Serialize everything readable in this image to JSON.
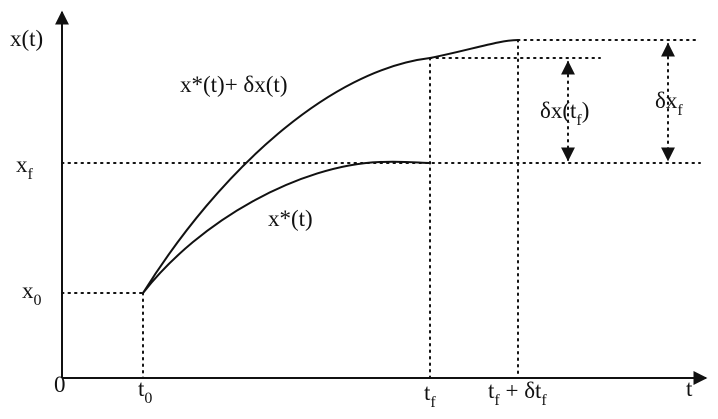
{
  "labels": {
    "y_axis": [
      {
        "text": "x(t)"
      }
    ],
    "perturbed_curve": [
      {
        "text": "x*(t)+ δx(t)"
      }
    ],
    "optimal_curve": [
      {
        "text": "x*(t)"
      }
    ],
    "x_final": [
      {
        "text": "x"
      },
      {
        "text": "f",
        "sub": true
      }
    ],
    "x_initial": [
      {
        "text": "x"
      },
      {
        "text": "0",
        "sub": true
      }
    ],
    "origin": [
      {
        "text": "0"
      }
    ],
    "t_initial": [
      {
        "text": "t"
      },
      {
        "text": "0",
        "sub": true
      }
    ],
    "t_final": [
      {
        "text": "t"
      },
      {
        "text": "f",
        "sub": true
      }
    ],
    "t_final_shifted": [
      {
        "text": "t"
      },
      {
        "text": "f",
        "sub": true
      },
      {
        "text": " + δt"
      },
      {
        "text": "f",
        "sub": true
      }
    ],
    "x_axis": [
      {
        "text": "t"
      }
    ],
    "delta_x_at_tf": [
      {
        "text": "δx(t"
      },
      {
        "text": "f",
        "sub": true
      },
      {
        "text": ")"
      }
    ],
    "delta_x_final": [
      {
        "text": "δx"
      },
      {
        "text": "f",
        "sub": true
      }
    ]
  }
}
